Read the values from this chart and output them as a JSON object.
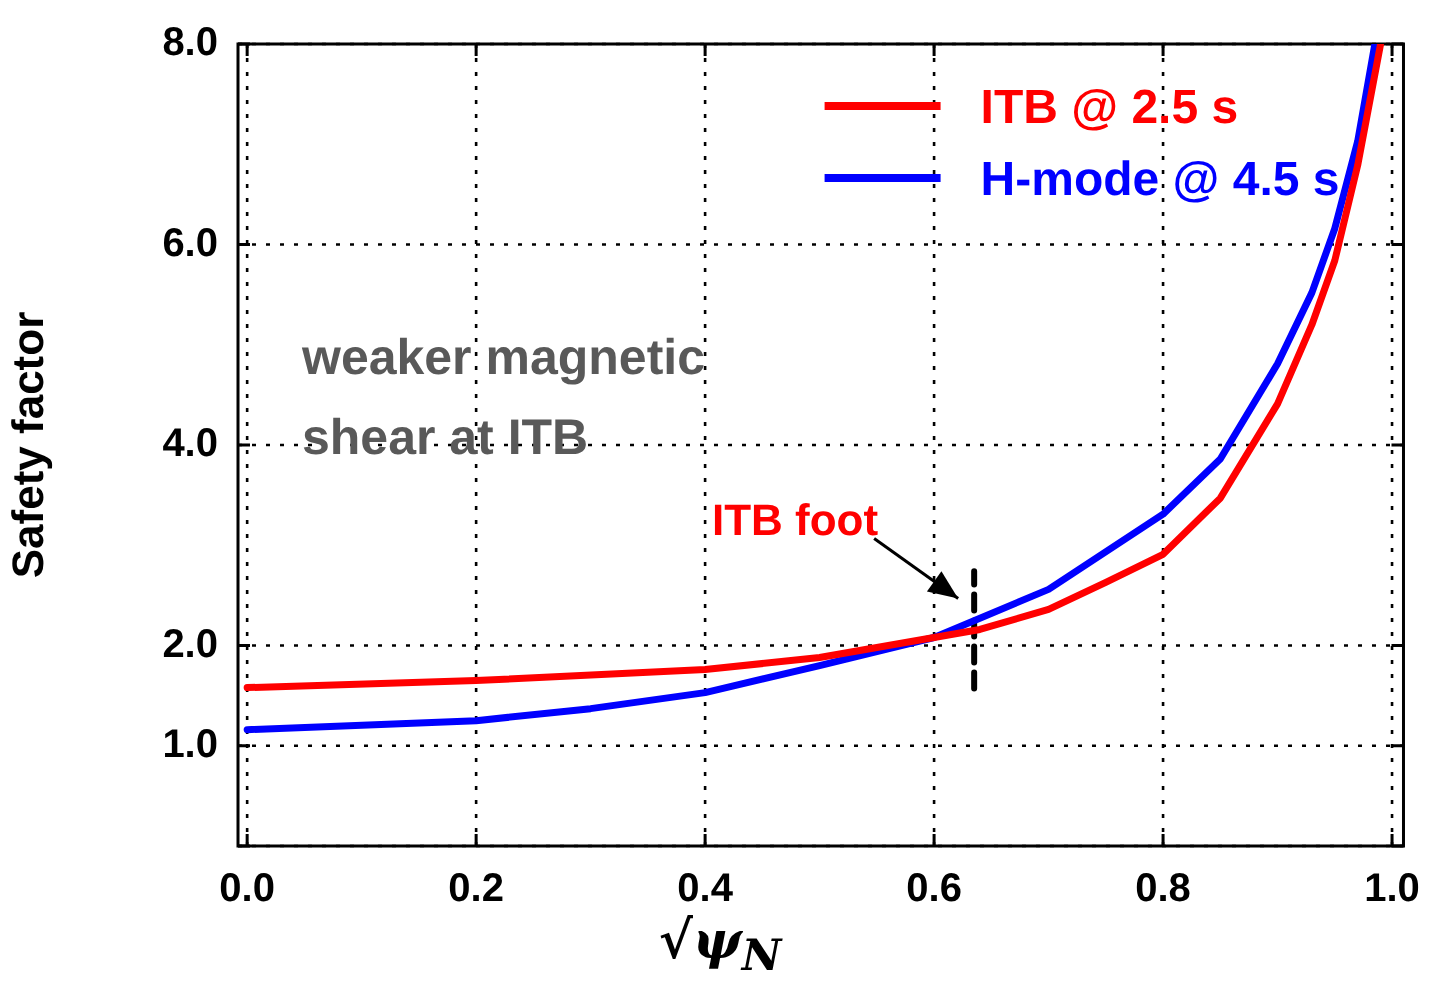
{
  "chart_data": {
    "type": "line",
    "xlabel": "√ψ$_{N}$",
    "ylabel": "Safety factor",
    "xlim": [
      -0.008,
      1.01
    ],
    "ylim": [
      0,
      8
    ],
    "xticks": [
      {
        "value": 0,
        "label": "0.0"
      },
      {
        "value": 0.2,
        "label": "0.2"
      },
      {
        "value": 0.4,
        "label": "0.4"
      },
      {
        "value": 0.6,
        "label": "0.6"
      },
      {
        "value": 0.8,
        "label": "0.8"
      },
      {
        "value": 1,
        "label": "1.0"
      }
    ],
    "yticks": [
      {
        "value": 0,
        "label": null
      },
      {
        "value": 1,
        "label": "1.0"
      },
      {
        "value": 2,
        "label": "2.0"
      },
      {
        "value": 4,
        "label": "4.0"
      },
      {
        "value": 6,
        "label": "6.0"
      },
      {
        "value": 8,
        "label": "8.0"
      }
    ],
    "grid": true,
    "legend": "top right",
    "marker": "none",
    "line_style": "solid",
    "series": [
      {
        "name": "ITB @ 2.5 s",
        "color": "#ff0000",
        "x": [
          0,
          0.2,
          0.4,
          0.5,
          0.6,
          0.64,
          0.7,
          0.75,
          0.8,
          0.85,
          0.9,
          0.93,
          0.95,
          0.97,
          0.99
        ],
        "values": [
          1.58,
          1.65,
          1.76,
          1.88,
          2.08,
          2.16,
          2.36,
          2.63,
          2.91,
          3.47,
          4.41,
          5.2,
          5.84,
          6.79,
          8.0
        ]
      },
      {
        "name": "H-mode @ 4.5 s",
        "color": "#0000ff",
        "x": [
          0,
          0.2,
          0.3,
          0.4,
          0.5,
          0.6,
          0.7,
          0.8,
          0.85,
          0.9,
          0.93,
          0.95,
          0.97,
          0.985
        ],
        "values": [
          1.16,
          1.25,
          1.37,
          1.53,
          1.8,
          2.08,
          2.56,
          3.31,
          3.86,
          4.81,
          5.52,
          6.16,
          7.03,
          8.0
        ]
      },
      {
        "color": "#000000",
        "line_style": "dashed",
        "x": [
          0.635,
          0.635
        ],
        "values": [
          1.57,
          2.74
        ]
      }
    ],
    "annotations": [
      "weaker magnetic shear at ITB",
      {
        "text": "ITB foot",
        "x": 0.635,
        "y": 2.15
      }
    ]
  }
}
